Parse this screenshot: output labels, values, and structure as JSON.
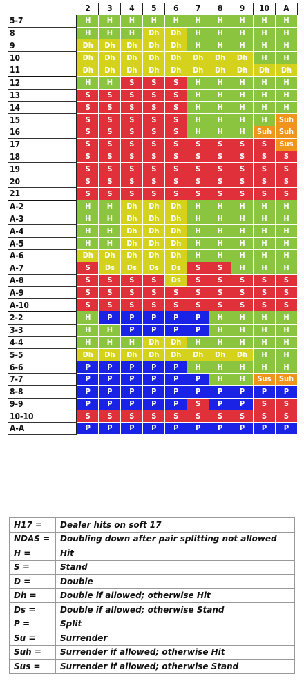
{
  "dealer_columns": [
    "2",
    "3",
    "4",
    "5",
    "6",
    "7",
    "8",
    "9",
    "10",
    "A"
  ],
  "rows": [
    {
      "hand": "5-7",
      "actions": [
        "H",
        "H",
        "H",
        "H",
        "H",
        "H",
        "H",
        "H",
        "H",
        "H"
      ]
    },
    {
      "hand": "8",
      "actions": [
        "H",
        "H",
        "H",
        "Dh",
        "Dh",
        "H",
        "H",
        "H",
        "H",
        "H"
      ]
    },
    {
      "hand": "9",
      "actions": [
        "Dh",
        "Dh",
        "Dh",
        "Dh",
        "Dh",
        "H",
        "H",
        "H",
        "H",
        "H"
      ]
    },
    {
      "hand": "10",
      "actions": [
        "Dh",
        "Dh",
        "Dh",
        "Dh",
        "Dh",
        "Dh",
        "Dh",
        "Dh",
        "H",
        "H"
      ]
    },
    {
      "hand": "11",
      "actions": [
        "Dh",
        "Dh",
        "Dh",
        "Dh",
        "Dh",
        "Dh",
        "Dh",
        "Dh",
        "Dh",
        "Dh"
      ]
    },
    {
      "hand": "12",
      "actions": [
        "H",
        "H",
        "S",
        "S",
        "S",
        "H",
        "H",
        "H",
        "H",
        "H"
      ]
    },
    {
      "hand": "13",
      "actions": [
        "S",
        "S",
        "S",
        "S",
        "S",
        "H",
        "H",
        "H",
        "H",
        "H"
      ]
    },
    {
      "hand": "14",
      "actions": [
        "S",
        "S",
        "S",
        "S",
        "S",
        "H",
        "H",
        "H",
        "H",
        "H"
      ]
    },
    {
      "hand": "15",
      "actions": [
        "S",
        "S",
        "S",
        "S",
        "S",
        "H",
        "H",
        "H",
        "H",
        "Suh"
      ]
    },
    {
      "hand": "16",
      "actions": [
        "S",
        "S",
        "S",
        "S",
        "S",
        "H",
        "H",
        "H",
        "Suh",
        "Suh"
      ]
    },
    {
      "hand": "17",
      "actions": [
        "S",
        "S",
        "S",
        "S",
        "S",
        "S",
        "S",
        "S",
        "S",
        "Sus"
      ]
    },
    {
      "hand": "18",
      "actions": [
        "S",
        "S",
        "S",
        "S",
        "S",
        "S",
        "S",
        "S",
        "S",
        "S"
      ]
    },
    {
      "hand": "19",
      "actions": [
        "S",
        "S",
        "S",
        "S",
        "S",
        "S",
        "S",
        "S",
        "S",
        "S"
      ]
    },
    {
      "hand": "20",
      "actions": [
        "S",
        "S",
        "S",
        "S",
        "S",
        "S",
        "S",
        "S",
        "S",
        "S"
      ]
    },
    {
      "hand": "21",
      "actions": [
        "S",
        "S",
        "S",
        "S",
        "S",
        "S",
        "S",
        "S",
        "S",
        "S"
      ]
    },
    {
      "hand": "A-2",
      "actions": [
        "H",
        "H",
        "Dh",
        "Dh",
        "Dh",
        "H",
        "H",
        "H",
        "H",
        "H"
      ]
    },
    {
      "hand": "A-3",
      "actions": [
        "H",
        "H",
        "Dh",
        "Dh",
        "Dh",
        "H",
        "H",
        "H",
        "H",
        "H"
      ]
    },
    {
      "hand": "A-4",
      "actions": [
        "H",
        "H",
        "Dh",
        "Dh",
        "Dh",
        "H",
        "H",
        "H",
        "H",
        "H"
      ]
    },
    {
      "hand": "A-5",
      "actions": [
        "H",
        "H",
        "Dh",
        "Dh",
        "Dh",
        "H",
        "H",
        "H",
        "H",
        "H"
      ]
    },
    {
      "hand": "A-6",
      "actions": [
        "Dh",
        "Dh",
        "Dh",
        "Dh",
        "Dh",
        "H",
        "H",
        "H",
        "H",
        "H"
      ]
    },
    {
      "hand": "A-7",
      "actions": [
        "S",
        "Ds",
        "Ds",
        "Ds",
        "Ds",
        "S",
        "S",
        "H",
        "H",
        "H"
      ]
    },
    {
      "hand": "A-8",
      "actions": [
        "S",
        "S",
        "S",
        "S",
        "Ds",
        "S",
        "S",
        "S",
        "S",
        "S"
      ]
    },
    {
      "hand": "A-9",
      "actions": [
        "S",
        "S",
        "S",
        "S",
        "S",
        "S",
        "S",
        "S",
        "S",
        "S"
      ]
    },
    {
      "hand": "A-10",
      "actions": [
        "S",
        "S",
        "S",
        "S",
        "S",
        "S",
        "S",
        "S",
        "S",
        "S"
      ]
    },
    {
      "hand": "2-2",
      "actions": [
        "H",
        "P",
        "P",
        "P",
        "P",
        "P",
        "H",
        "H",
        "H",
        "H"
      ]
    },
    {
      "hand": "3-3",
      "actions": [
        "H",
        "H",
        "P",
        "P",
        "P",
        "P",
        "H",
        "H",
        "H",
        "H"
      ]
    },
    {
      "hand": "4-4",
      "actions": [
        "H",
        "H",
        "H",
        "Dh",
        "Dh",
        "H",
        "H",
        "H",
        "H",
        "H"
      ]
    },
    {
      "hand": "5-5",
      "actions": [
        "Dh",
        "Dh",
        "Dh",
        "Dh",
        "Dh",
        "Dh",
        "Dh",
        "Dh",
        "H",
        "H"
      ]
    },
    {
      "hand": "6-6",
      "actions": [
        "P",
        "P",
        "P",
        "P",
        "P",
        "H",
        "H",
        "H",
        "H",
        "H"
      ]
    },
    {
      "hand": "7-7",
      "actions": [
        "P",
        "P",
        "P",
        "P",
        "P",
        "P",
        "H",
        "H",
        "Sus",
        "Suh"
      ]
    },
    {
      "hand": "8-8",
      "actions": [
        "P",
        "P",
        "P",
        "P",
        "P",
        "P",
        "P",
        "P",
        "P",
        "P"
      ]
    },
    {
      "hand": "9-9",
      "actions": [
        "P",
        "P",
        "P",
        "P",
        "P",
        "S",
        "P",
        "P",
        "S",
        "S"
      ]
    },
    {
      "hand": "10-10",
      "actions": [
        "S",
        "S",
        "S",
        "S",
        "S",
        "S",
        "S",
        "S",
        "S",
        "S"
      ]
    },
    {
      "hand": "A-A",
      "actions": [
        "P",
        "P",
        "P",
        "P",
        "P",
        "P",
        "P",
        "P",
        "P",
        "P"
      ]
    }
  ],
  "action_colors": {
    "H": "#8bc53f",
    "S": "#e0303a",
    "Dh": "#d4d21c",
    "Ds": "#d4d21c",
    "P": "#1a22e6",
    "Suh": "#f0951c",
    "Sus": "#f0951c"
  },
  "legend": [
    {
      "key": "H17 =",
      "meaning": "Dealer hits on soft 17"
    },
    {
      "key": "NDAS =",
      "meaning": "Doubling down after pair splitting not allowed"
    },
    {
      "key": "H =",
      "meaning": "Hit"
    },
    {
      "key": "S =",
      "meaning": "Stand"
    },
    {
      "key": "D =",
      "meaning": "Double"
    },
    {
      "key": "Dh =",
      "meaning": "Double if allowed; otherwise Hit"
    },
    {
      "key": "Ds =",
      "meaning": "Double if allowed; otherwise Stand"
    },
    {
      "key": "P =",
      "meaning": "Split"
    },
    {
      "key": "Su =",
      "meaning": "Surrender"
    },
    {
      "key": "Suh =",
      "meaning": "Surrender if allowed; otherwise Hit"
    },
    {
      "key": "Sus =",
      "meaning": "Surrender if allowed; otherwise Stand"
    }
  ]
}
